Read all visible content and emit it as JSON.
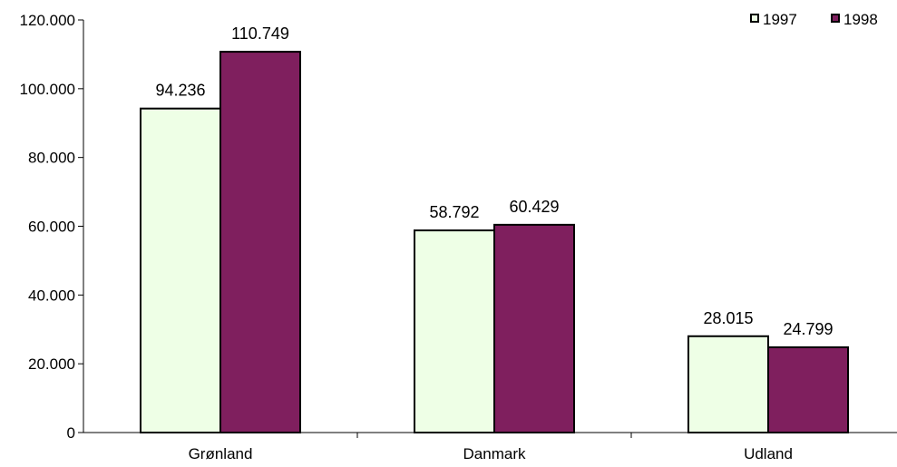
{
  "chart_data": {
    "type": "bar",
    "categories": [
      "Grønland",
      "Danmark",
      "Udland"
    ],
    "series": [
      {
        "name": "1997",
        "values": [
          94236,
          58792,
          28015
        ],
        "labels": [
          "94.236",
          "58.792",
          "28.015"
        ],
        "color": "#eeffe6"
      },
      {
        "name": "1998",
        "values": [
          110749,
          60429,
          24799
        ],
        "labels": [
          "110.749",
          "60.429",
          "24.799"
        ],
        "color": "#7f1f5e"
      }
    ],
    "y_ticks": [
      0,
      20000,
      40000,
      60000,
      80000,
      100000,
      120000
    ],
    "y_tick_labels": [
      "0",
      "20.000",
      "40.000",
      "60.000",
      "80.000",
      "100.000",
      "120.000"
    ],
    "ylim": [
      0,
      120000
    ],
    "title": "",
    "xlabel": "",
    "ylabel": "",
    "grid": false,
    "legend_position": "top-right"
  }
}
